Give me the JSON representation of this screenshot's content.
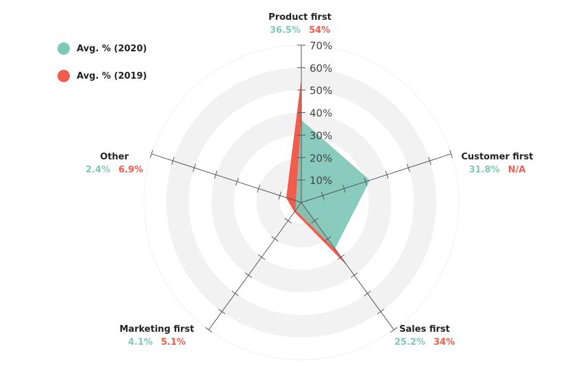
{
  "colors": {
    "series_2020": "#7fc8b7",
    "series_2019": "#f25c4d",
    "ring_fill": "#f2f2f2",
    "axis": "#555555"
  },
  "legend": {
    "items": [
      {
        "label": "Avg. % (2020)",
        "color": "#7fc8b7"
      },
      {
        "label": "Avg. % (2019)",
        "color": "#f25c4d"
      }
    ]
  },
  "chart_data": {
    "type": "radar",
    "categories": [
      "Product first",
      "Customer first",
      "Sales first",
      "Marketing first",
      "Other"
    ],
    "series": [
      {
        "name": "Avg. % (2020)",
        "values": [
          36.5,
          31.8,
          25.2,
          4.1,
          2.4
        ],
        "display": [
          "36.5%",
          "31.8%",
          "25.2%",
          "4.1%",
          "2.4%"
        ]
      },
      {
        "name": "Avg. % (2019)",
        "values": [
          54,
          null,
          34,
          5.1,
          6.9
        ],
        "display": [
          "54%",
          "N/A",
          "34%",
          "5.1%",
          "6.9%"
        ]
      }
    ],
    "rlim": [
      0,
      70
    ],
    "r_ticks": [
      "10%",
      "20%",
      "30%",
      "40%",
      "50%",
      "60%",
      "70%"
    ],
    "r_tick_values": [
      10,
      20,
      30,
      40,
      50,
      60,
      70
    ]
  }
}
